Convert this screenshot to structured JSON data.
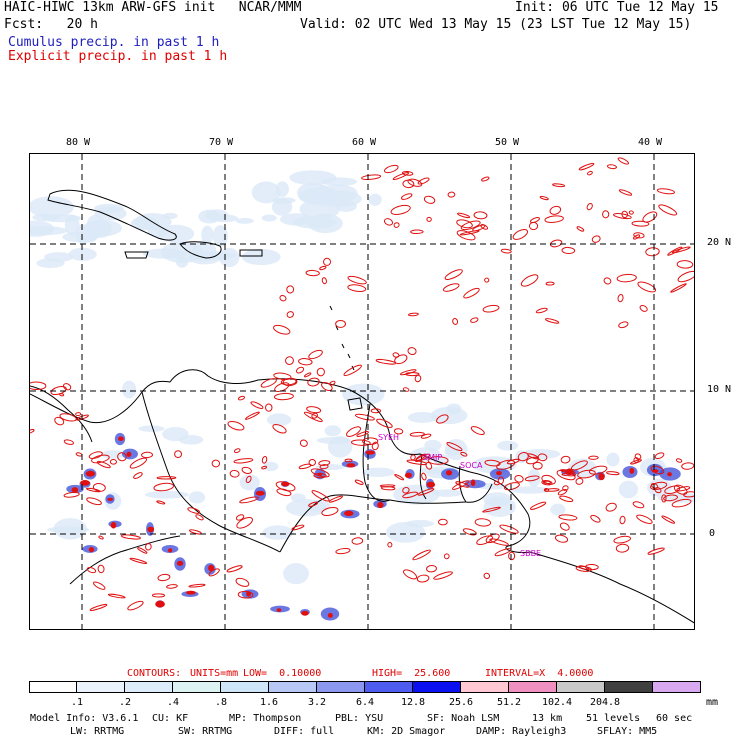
{
  "header": {
    "line1_left": "HAIC-HIWC 13km ARW-GFS init   NCAR/MMM",
    "line1_right": "Init: 06 UTC Tue 12 May 15",
    "line2_left": "Fcst:   20 h",
    "line2_right": "Valid: 02 UTC Wed 13 May 15 (23 LST Tue 12 May 15)",
    "line3": "Cumulus precip. in past 1 h",
    "line4": "Explicit precip. in past 1 h"
  },
  "map": {
    "lon_labels": [
      "80 W",
      "70 W",
      "60 W",
      "50 W",
      "40 W"
    ],
    "lat_labels": [
      "20 N",
      "10 N",
      "0"
    ],
    "station_labels": [
      "SYEH",
      "SMJP",
      "SOCA",
      "SBBE"
    ],
    "colors": {
      "cumulus": "#3a4bd8",
      "explicit": "#e01010",
      "coast": "#000000",
      "grid": "#000000",
      "station": "#cc00cc"
    }
  },
  "contours": {
    "label": "CONTOURS:",
    "units": "UNITS=mm",
    "low": "LOW=  0.10000",
    "high": "HIGH=  25.600",
    "interval": "INTERVAL=X  4.0000"
  },
  "scale": {
    "labels": [
      ".1",
      ".2",
      ".4",
      ".8",
      "1.6",
      "3.2",
      "6.4",
      "12.8",
      "25.6",
      "51.2",
      "102.4",
      "204.8"
    ],
    "unit": "mm",
    "colors": [
      "#ffffff",
      "#eaf3fb",
      "#dcecfa",
      "#ddf2f2",
      "#cfe6f8",
      "#b8c8f5",
      "#8c98f0",
      "#4e5cf0",
      "#0a10f0",
      "#ffc8d2",
      "#f090c0",
      "#c8c8c8",
      "#404040",
      "#d8a8f0"
    ]
  },
  "footer": {
    "line1": [
      {
        "k": "model",
        "t": "Model Info: V3.6.1"
      },
      {
        "k": "cu",
        "t": "CU: KF"
      },
      {
        "k": "mp",
        "t": "MP: Thompson"
      },
      {
        "k": "pbl",
        "t": "PBL: YSU"
      },
      {
        "k": "sf",
        "t": "SF: Noah LSM"
      },
      {
        "k": "res",
        "t": "13 km"
      },
      {
        "k": "lev",
        "t": "51 levels"
      },
      {
        "k": "dt",
        "t": "60 sec"
      }
    ],
    "line2": [
      {
        "k": "lw",
        "t": "LW: RRTMG"
      },
      {
        "k": "sw",
        "t": "SW: RRTMG"
      },
      {
        "k": "diff",
        "t": "DIFF: full"
      },
      {
        "k": "km",
        "t": "KM: 2D Smagor"
      },
      {
        "k": "damp",
        "t": "DAMP: Rayleigh3"
      },
      {
        "k": "sflay",
        "t": "SFLAY: MM5"
      }
    ]
  }
}
